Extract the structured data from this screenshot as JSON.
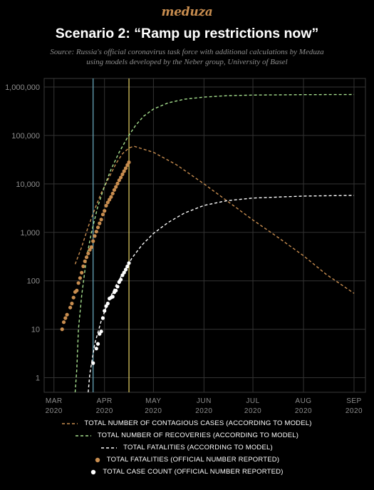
{
  "header": {
    "logo": "meduza",
    "title": "Scenario 2: “Ramp up restrictions now”",
    "subtitle_line1": "Source: Russia's official coronavirus task force with additional calculations by Meduza",
    "subtitle_line2": "using models developed by the Neber group, University of Basel"
  },
  "legend": [
    {
      "label": "TOTAL NUMBER OF CONTAGIOUS CASES (ACCORDING TO MODEL)",
      "style": "dashed",
      "color": "#c88d4f"
    },
    {
      "label": "TOTAL NUMBER OF RECOVERIES (ACCORDING TO MODEL)",
      "style": "dashed",
      "color": "#a6e08e"
    },
    {
      "label": "TOTAL FATALITIES (ACCORDING TO MODEL)",
      "style": "dashed",
      "color": "#ffffff"
    },
    {
      "label": "TOTAL FATALITIES (OFFICIAL NUMBER REPORTED)",
      "style": "dot",
      "color": "#c88d4f"
    },
    {
      "label": "TOTAL CASE COUNT (OFFICIAL NUMBER REPORTED)",
      "style": "dot",
      "color": "#ffffff"
    }
  ],
  "chart_data": {
    "type": "line",
    "y_scale": "log",
    "ylim": [
      0.5,
      1500000
    ],
    "y_ticks": [
      1,
      10,
      100,
      1000,
      10000,
      100000,
      1000000
    ],
    "y_tick_labels": [
      "1",
      "10",
      "100",
      "1,000",
      "10,000",
      "100,000",
      "1,000,000"
    ],
    "x_axis_type": "date",
    "xlim": [
      "2020-02-24",
      "2020-09-08"
    ],
    "x_ticks": [
      "2020-03-01",
      "2020-04-01",
      "2020-05-01",
      "2020-06-01",
      "2020-07-01",
      "2020-08-01",
      "2020-09-01"
    ],
    "x_tick_labels": [
      [
        "MAR",
        "2020"
      ],
      [
        "APR",
        "2020"
      ],
      [
        "MAY",
        "2020"
      ],
      [
        "JUN",
        "2020"
      ],
      [
        "JUL",
        "2020"
      ],
      [
        "AUG",
        "2020"
      ],
      [
        "SEP",
        "2020"
      ]
    ],
    "grid": true,
    "vertical_lines": [
      {
        "x": "2020-03-25",
        "color": "#6fb3c9"
      },
      {
        "x": "2020-04-16",
        "color": "#e8d466"
      }
    ],
    "series": [
      {
        "name": "TOTAL NUMBER OF CONTAGIOUS CASES (ACCORDING TO MODEL)",
        "kind": "dashed-line",
        "color": "#c88d4f",
        "points": [
          [
            "2020-03-14",
            220
          ],
          [
            "2020-03-18",
            500
          ],
          [
            "2020-03-22",
            1300
          ],
          [
            "2020-03-26",
            3000
          ],
          [
            "2020-03-30",
            6500
          ],
          [
            "2020-04-04",
            14000
          ],
          [
            "2020-04-08",
            26000
          ],
          [
            "2020-04-12",
            42000
          ],
          [
            "2020-04-16",
            55000
          ],
          [
            "2020-04-19",
            60000
          ],
          [
            "2020-05-01",
            45000
          ],
          [
            "2020-05-15",
            25000
          ],
          [
            "2020-06-01",
            10000
          ],
          [
            "2020-06-15",
            4500
          ],
          [
            "2020-07-01",
            1800
          ],
          [
            "2020-07-15",
            850
          ],
          [
            "2020-08-01",
            330
          ],
          [
            "2020-08-15",
            135
          ],
          [
            "2020-09-01",
            55
          ]
        ]
      },
      {
        "name": "TOTAL NUMBER OF RECOVERIES (ACCORDING TO MODEL)",
        "kind": "dashed-line",
        "color": "#a6e08e",
        "points": [
          [
            "2020-03-14",
            0.5
          ],
          [
            "2020-03-15",
            1.5
          ],
          [
            "2020-03-16",
            10
          ],
          [
            "2020-03-18",
            50
          ],
          [
            "2020-03-21",
            300
          ],
          [
            "2020-03-24",
            1000
          ],
          [
            "2020-03-28",
            3500
          ],
          [
            "2020-04-01",
            9000
          ],
          [
            "2020-04-05",
            20000
          ],
          [
            "2020-04-10",
            45000
          ],
          [
            "2020-04-15",
            90000
          ],
          [
            "2020-04-20",
            160000
          ],
          [
            "2020-04-25",
            250000
          ],
          [
            "2020-05-01",
            350000
          ],
          [
            "2020-05-10",
            470000
          ],
          [
            "2020-05-20",
            560000
          ],
          [
            "2020-06-01",
            620000
          ],
          [
            "2020-06-15",
            660000
          ],
          [
            "2020-07-01",
            680000
          ],
          [
            "2020-08-01",
            695000
          ],
          [
            "2020-09-01",
            700000
          ]
        ]
      },
      {
        "name": "TOTAL FATALITIES (ACCORDING TO MODEL)",
        "kind": "dashed-line",
        "color": "#ffffff",
        "points": [
          [
            "2020-03-22",
            0.5
          ],
          [
            "2020-03-23",
            1.2
          ],
          [
            "2020-03-26",
            5
          ],
          [
            "2020-03-30",
            15
          ],
          [
            "2020-04-03",
            35
          ],
          [
            "2020-04-08",
            80
          ],
          [
            "2020-04-13",
            160
          ],
          [
            "2020-04-18",
            300
          ],
          [
            "2020-04-24",
            550
          ],
          [
            "2020-05-01",
            950
          ],
          [
            "2020-05-10",
            1600
          ],
          [
            "2020-05-20",
            2500
          ],
          [
            "2020-06-01",
            3600
          ],
          [
            "2020-06-15",
            4500
          ],
          [
            "2020-07-01",
            5100
          ],
          [
            "2020-08-01",
            5600
          ],
          [
            "2020-09-01",
            5800
          ]
        ]
      },
      {
        "name": "TOTAL FATALITIES (OFFICIAL NUMBER REPORTED)",
        "kind": "dots",
        "color": "#c88d4f",
        "points": [
          [
            "2020-03-06",
            10
          ],
          [
            "2020-03-07",
            14
          ],
          [
            "2020-03-08",
            17
          ],
          [
            "2020-03-09",
            20
          ],
          [
            "2020-03-11",
            28
          ],
          [
            "2020-03-12",
            34
          ],
          [
            "2020-03-13",
            45
          ],
          [
            "2020-03-14",
            59
          ],
          [
            "2020-03-15",
            63
          ],
          [
            "2020-03-16",
            90
          ],
          [
            "2020-03-17",
            114
          ],
          [
            "2020-03-18",
            147
          ],
          [
            "2020-03-19",
            199
          ],
          [
            "2020-03-20",
            253
          ],
          [
            "2020-03-21",
            306
          ],
          [
            "2020-03-22",
            367
          ],
          [
            "2020-03-23",
            438
          ],
          [
            "2020-03-24",
            495
          ],
          [
            "2020-03-25",
            658
          ],
          [
            "2020-03-26",
            840
          ],
          [
            "2020-03-27",
            1036
          ],
          [
            "2020-03-28",
            1264
          ],
          [
            "2020-03-29",
            1534
          ],
          [
            "2020-03-30",
            1836
          ],
          [
            "2020-03-31",
            2337
          ],
          [
            "2020-04-01",
            2777
          ],
          [
            "2020-04-02",
            3548
          ],
          [
            "2020-04-03",
            4149
          ],
          [
            "2020-04-04",
            4731
          ],
          [
            "2020-04-05",
            5389
          ],
          [
            "2020-04-06",
            6343
          ],
          [
            "2020-04-07",
            7497
          ],
          [
            "2020-04-08",
            8672
          ],
          [
            "2020-04-09",
            10131
          ],
          [
            "2020-04-10",
            11917
          ],
          [
            "2020-04-11",
            13584
          ],
          [
            "2020-04-12",
            15770
          ],
          [
            "2020-04-13",
            18328
          ],
          [
            "2020-04-14",
            21102
          ],
          [
            "2020-04-15",
            24490
          ],
          [
            "2020-04-16",
            27938
          ]
        ]
      },
      {
        "name": "TOTAL CASE COUNT (OFFICIAL NUMBER REPORTED)",
        "kind": "dots",
        "color": "#ffffff",
        "points": [
          [
            "2020-03-25",
            2
          ],
          [
            "2020-03-27",
            4
          ],
          [
            "2020-03-28",
            5
          ],
          [
            "2020-03-29",
            8
          ],
          [
            "2020-03-30",
            9
          ],
          [
            "2020-03-31",
            17
          ],
          [
            "2020-04-01",
            24
          ],
          [
            "2020-04-02",
            30
          ],
          [
            "2020-04-03",
            34
          ],
          [
            "2020-04-04",
            43
          ],
          [
            "2020-04-05",
            45
          ],
          [
            "2020-04-06",
            47
          ],
          [
            "2020-04-07",
            58
          ],
          [
            "2020-04-08",
            63
          ],
          [
            "2020-04-09",
            76
          ],
          [
            "2020-04-10",
            94
          ],
          [
            "2020-04-11",
            106
          ],
          [
            "2020-04-12",
            130
          ],
          [
            "2020-04-13",
            148
          ],
          [
            "2020-04-14",
            170
          ],
          [
            "2020-04-15",
            198
          ],
          [
            "2020-04-16",
            232
          ]
        ]
      }
    ]
  }
}
